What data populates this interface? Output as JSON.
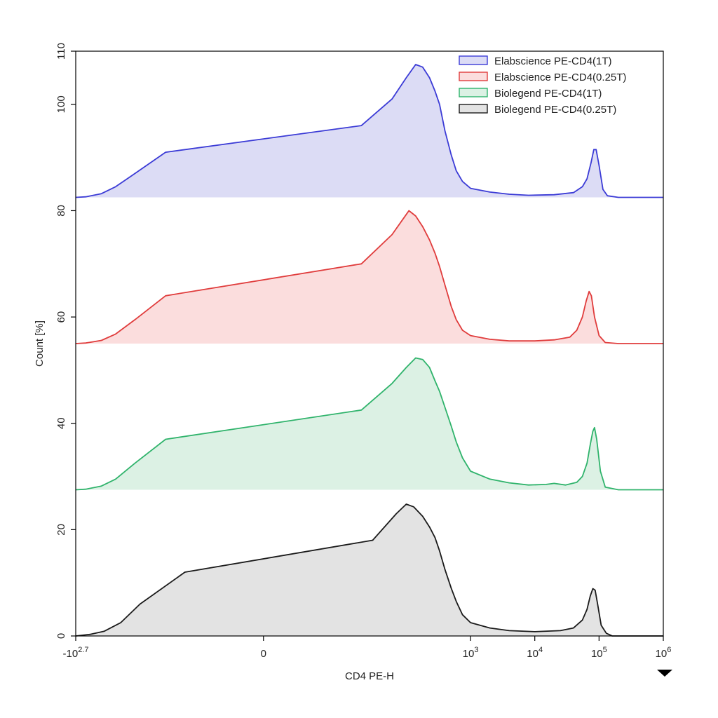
{
  "chart_data": {
    "type": "area",
    "xlabel": "CD4 PE-H",
    "ylabel": "Count [%]",
    "x_scale": "biexponential",
    "ylim": [
      0,
      110
    ],
    "y_ticks": [
      0,
      20,
      40,
      60,
      80,
      100,
      110
    ],
    "x_ticks": [
      {
        "value": -501.2,
        "base": "-10",
        "exp": "2.7"
      },
      {
        "value": 0,
        "base": "0",
        "exp": ""
      },
      {
        "value": 1000,
        "base": "10",
        "exp": "3"
      },
      {
        "value": 10000,
        "base": "10",
        "exp": "4"
      },
      {
        "value": 100000,
        "base": "10",
        "exp": "5"
      },
      {
        "value": 1000000,
        "base": "10",
        "exp": "6"
      }
    ],
    "legend_position": "top-right",
    "grid": false,
    "series": [
      {
        "name": "Elabscience PE-CD4(1T)",
        "baseline": 82.5,
        "stroke": "#3b3bd6",
        "fill": "#dcdcf5",
        "points": [
          [
            -501.2,
            82.5
          ],
          [
            -350,
            82.6
          ],
          [
            -200,
            83.2
          ],
          [
            -120,
            84.5
          ],
          [
            -60,
            87
          ],
          [
            -20,
            91
          ],
          [
            20,
            96
          ],
          [
            60,
            101
          ],
          [
            100,
            105
          ],
          [
            140,
            107.5
          ],
          [
            180,
            107
          ],
          [
            230,
            105
          ],
          [
            280,
            102.5
          ],
          [
            330,
            100
          ],
          [
            400,
            95
          ],
          [
            500,
            90.5
          ],
          [
            600,
            87.5
          ],
          [
            750,
            85.5
          ],
          [
            1000,
            84.2
          ],
          [
            2000,
            83.5
          ],
          [
            4000,
            83.1
          ],
          [
            8000,
            82.9
          ],
          [
            20000,
            83
          ],
          [
            40000,
            83.4
          ],
          [
            55000,
            84.5
          ],
          [
            65000,
            86
          ],
          [
            75000,
            89
          ],
          [
            83000,
            91.5
          ],
          [
            90000,
            91.5
          ],
          [
            100000,
            88.5
          ],
          [
            115000,
            84
          ],
          [
            135000,
            82.8
          ],
          [
            200000,
            82.5
          ],
          [
            1000000,
            82.5
          ]
        ]
      },
      {
        "name": "Elabscience PE-CD4(0.25T)",
        "baseline": 55,
        "stroke": "#e03c3c",
        "fill": "#fbdddd",
        "points": [
          [
            -501.2,
            55
          ],
          [
            -350,
            55.1
          ],
          [
            -200,
            55.6
          ],
          [
            -120,
            56.8
          ],
          [
            -60,
            59.5
          ],
          [
            -20,
            64
          ],
          [
            20,
            70
          ],
          [
            60,
            75.5
          ],
          [
            90,
            78.5
          ],
          [
            110,
            80
          ],
          [
            140,
            79
          ],
          [
            180,
            77
          ],
          [
            230,
            74.5
          ],
          [
            280,
            72
          ],
          [
            330,
            69.5
          ],
          [
            400,
            66
          ],
          [
            500,
            62
          ],
          [
            600,
            59.5
          ],
          [
            750,
            57.5
          ],
          [
            1000,
            56.5
          ],
          [
            2000,
            55.8
          ],
          [
            4000,
            55.5
          ],
          [
            10000,
            55.5
          ],
          [
            20000,
            55.7
          ],
          [
            35000,
            56.2
          ],
          [
            45000,
            57.5
          ],
          [
            55000,
            60
          ],
          [
            63000,
            63
          ],
          [
            70000,
            64.8
          ],
          [
            76000,
            64
          ],
          [
            85000,
            60
          ],
          [
            100000,
            56.5
          ],
          [
            125000,
            55.2
          ],
          [
            200000,
            55
          ],
          [
            1000000,
            55
          ]
        ]
      },
      {
        "name": "Biolegend PE-CD4(1T)",
        "baseline": 27.5,
        "stroke": "#2fb36b",
        "fill": "#dcf1e4",
        "points": [
          [
            -501.2,
            27.5
          ],
          [
            -350,
            27.6
          ],
          [
            -200,
            28.2
          ],
          [
            -120,
            29.5
          ],
          [
            -60,
            32.5
          ],
          [
            -20,
            37
          ],
          [
            20,
            42.5
          ],
          [
            60,
            47.5
          ],
          [
            100,
            50.5
          ],
          [
            140,
            52.3
          ],
          [
            180,
            52
          ],
          [
            230,
            50.5
          ],
          [
            280,
            48
          ],
          [
            330,
            46
          ],
          [
            400,
            43
          ],
          [
            500,
            39.5
          ],
          [
            600,
            36.5
          ],
          [
            750,
            33.5
          ],
          [
            1000,
            31
          ],
          [
            2000,
            29.5
          ],
          [
            4000,
            28.8
          ],
          [
            8000,
            28.4
          ],
          [
            15000,
            28.5
          ],
          [
            20000,
            28.7
          ],
          [
            30000,
            28.4
          ],
          [
            45000,
            28.9
          ],
          [
            55000,
            30
          ],
          [
            65000,
            32.5
          ],
          [
            73000,
            36
          ],
          [
            80000,
            38.5
          ],
          [
            85000,
            39.2
          ],
          [
            92000,
            37
          ],
          [
            105000,
            31
          ],
          [
            125000,
            28
          ],
          [
            200000,
            27.5
          ],
          [
            1000000,
            27.5
          ]
        ]
      },
      {
        "name": "Biolegend PE-CD4(0.25T)",
        "baseline": 0,
        "stroke": "#1a1a1a",
        "fill": "#e3e3e3",
        "points": [
          [
            -501.2,
            0
          ],
          [
            -300,
            0.3
          ],
          [
            -180,
            0.9
          ],
          [
            -100,
            2.5
          ],
          [
            -50,
            6
          ],
          [
            -10,
            12
          ],
          [
            30,
            18
          ],
          [
            70,
            23
          ],
          [
            100,
            24.8
          ],
          [
            130,
            24.3
          ],
          [
            180,
            22.5
          ],
          [
            230,
            20.5
          ],
          [
            280,
            18.5
          ],
          [
            330,
            16
          ],
          [
            400,
            12.5
          ],
          [
            500,
            9
          ],
          [
            600,
            6.5
          ],
          [
            750,
            4
          ],
          [
            1000,
            2.5
          ],
          [
            2000,
            1.5
          ],
          [
            4000,
            1
          ],
          [
            10000,
            0.8
          ],
          [
            25000,
            1
          ],
          [
            40000,
            1.5
          ],
          [
            55000,
            3
          ],
          [
            65000,
            5
          ],
          [
            73000,
            7.5
          ],
          [
            80000,
            8.9
          ],
          [
            87000,
            8.6
          ],
          [
            95000,
            6
          ],
          [
            108000,
            2
          ],
          [
            130000,
            0.5
          ],
          [
            160000,
            0
          ],
          [
            1000000,
            0
          ]
        ]
      }
    ]
  }
}
